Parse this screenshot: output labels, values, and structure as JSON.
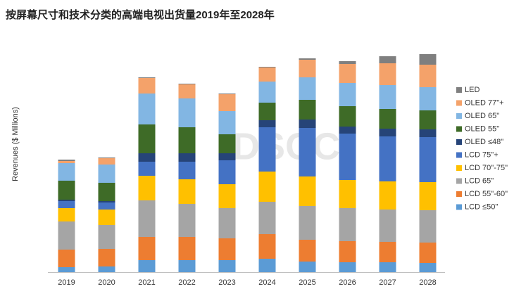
{
  "chart_data": {
    "type": "stacked_bar",
    "title": "按屏幕尺寸和技术分类的高端电视出货量2019年至2028年",
    "y_label": "Revenues ($ Millions)",
    "watermark": "DSCC",
    "categories": [
      "2019",
      "2020",
      "2021",
      "2022",
      "2023",
      "2024",
      "2025",
      "2026",
      "2027",
      "2028"
    ],
    "ylim": [
      0,
      310
    ],
    "legend": "right",
    "series": [
      {
        "name": "LCD  ≤50\"",
        "color": "#5b9bd5",
        "values": [
          7,
          8,
          17,
          17,
          17,
          19,
          15,
          14,
          14,
          13
        ]
      },
      {
        "name": "LCD 55\"-60\"",
        "color": "#ed7d31",
        "values": [
          25,
          25,
          33,
          33,
          31,
          35,
          31,
          30,
          29,
          29
        ]
      },
      {
        "name": "LCD 65\"",
        "color": "#a5a5a5",
        "values": [
          40,
          34,
          52,
          47,
          43,
          46,
          48,
          47,
          46,
          46
        ]
      },
      {
        "name": "LCD 70\"-75\"",
        "color": "#ffc000",
        "values": [
          19,
          22,
          35,
          35,
          34,
          43,
          42,
          40,
          40,
          40
        ]
      },
      {
        "name": "LCD 75\"+",
        "color": "#4472c4",
        "values": [
          10,
          10,
          20,
          25,
          34,
          63,
          69,
          66,
          64,
          64
        ]
      },
      {
        "name": "OLED  ≤48\"",
        "color": "#264478",
        "values": [
          2,
          2,
          12,
          12,
          10,
          10,
          12,
          10,
          11,
          11
        ]
      },
      {
        "name": "OLED 55\"",
        "color": "#3e6b27",
        "values": [
          27,
          26,
          41,
          37,
          27,
          25,
          28,
          29,
          28,
          27
        ]
      },
      {
        "name": "OLED 65\"",
        "color": "#82b6e3",
        "values": [
          25,
          26,
          44,
          41,
          33,
          30,
          32,
          33,
          34,
          33
        ]
      },
      {
        "name": "OLED 77\"+",
        "color": "#f4a26a",
        "values": [
          3,
          9,
          22,
          20,
          24,
          20,
          25,
          27,
          31,
          32
        ]
      },
      {
        "name": "LED",
        "color": "#7f7f7f",
        "values": [
          2,
          1,
          1,
          1,
          1,
          1,
          2,
          4,
          10,
          15
        ]
      }
    ]
  }
}
